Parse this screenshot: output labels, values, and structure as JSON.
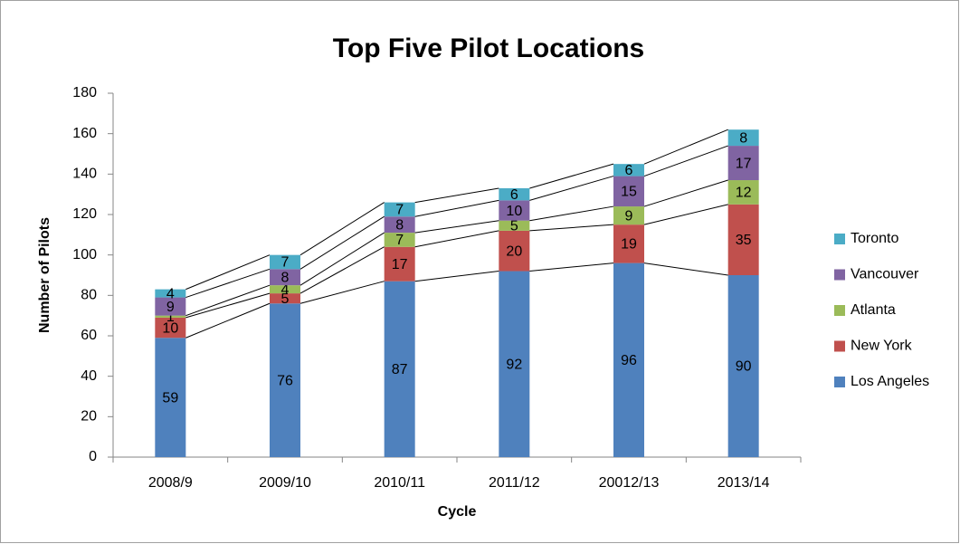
{
  "chart_data": {
    "type": "stacked_bar",
    "title": "Top Five Pilot Locations",
    "x_label": "Cycle",
    "y_label": "Number of Pilots",
    "categories": [
      "2008/9",
      "2009/10",
      "2010/11",
      "2011/12",
      "20012/13",
      "2013/14"
    ],
    "series": [
      {
        "name": "Los Angeles",
        "color": "#4f81bd",
        "values": [
          59,
          76,
          87,
          92,
          96,
          90
        ]
      },
      {
        "name": "New York",
        "color": "#c0504d",
        "values": [
          10,
          5,
          17,
          20,
          19,
          35
        ]
      },
      {
        "name": "Atlanta",
        "color": "#9bbb59",
        "values": [
          1,
          4,
          7,
          5,
          9,
          12
        ]
      },
      {
        "name": "Vancouver",
        "color": "#8064a2",
        "values": [
          9,
          8,
          8,
          10,
          15,
          17
        ]
      },
      {
        "name": "Toronto",
        "color": "#4bacc6",
        "values": [
          4,
          7,
          7,
          6,
          6,
          8
        ]
      }
    ],
    "ylim": [
      0,
      180
    ],
    "yticks": [
      0,
      20,
      40,
      60,
      80,
      100,
      120,
      140,
      160,
      180
    ],
    "legend": "right",
    "series_lines": true
  }
}
